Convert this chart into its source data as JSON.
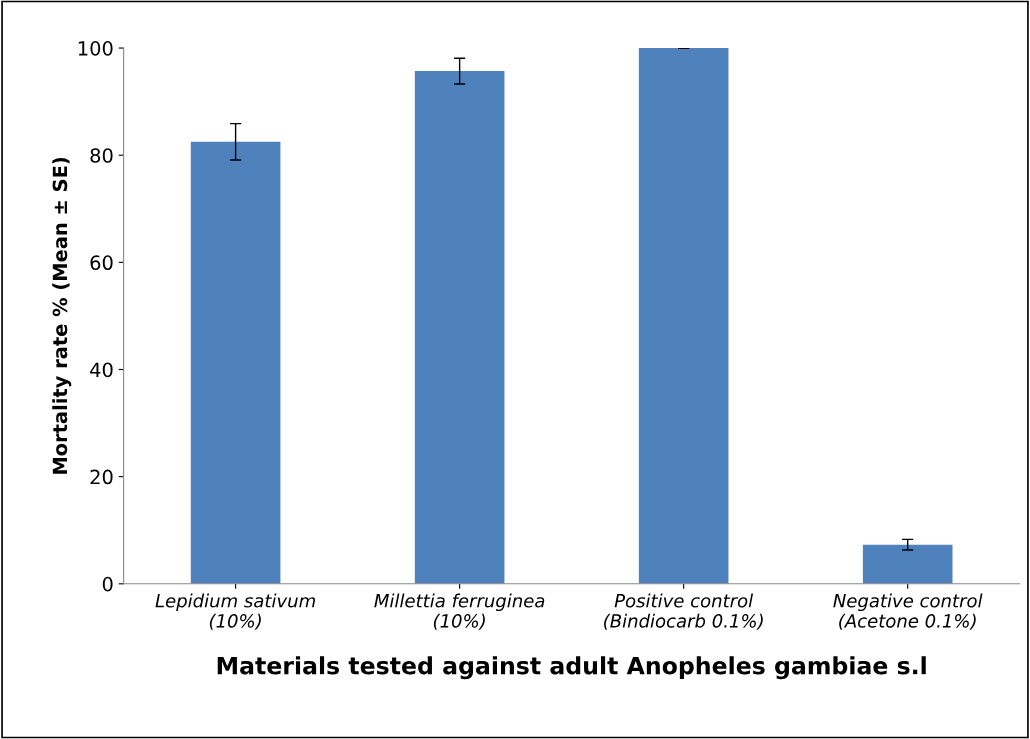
{
  "chart_data": {
    "type": "bar",
    "xlabel": "Materials tested against adult Anopheles gambiae s.l",
    "ylabel": "Mortality rate % (Mean ± SE)",
    "categories": [
      "Lepidium sativum\n(10%)",
      "Millettia ferruginea\n(10%)",
      "Positive control\n(Bindiocarb 0.1%)",
      "Negative control\n(Acetone 0.1%)"
    ],
    "values": [
      82.5,
      95.7,
      100,
      7.3
    ],
    "errors": [
      3.4,
      2.4,
      0,
      1.0
    ],
    "color": "#4f81bd",
    "ylim": [
      0,
      100
    ],
    "yticks": [
      0,
      20,
      40,
      60,
      80,
      100
    ],
    "grid": false
  }
}
